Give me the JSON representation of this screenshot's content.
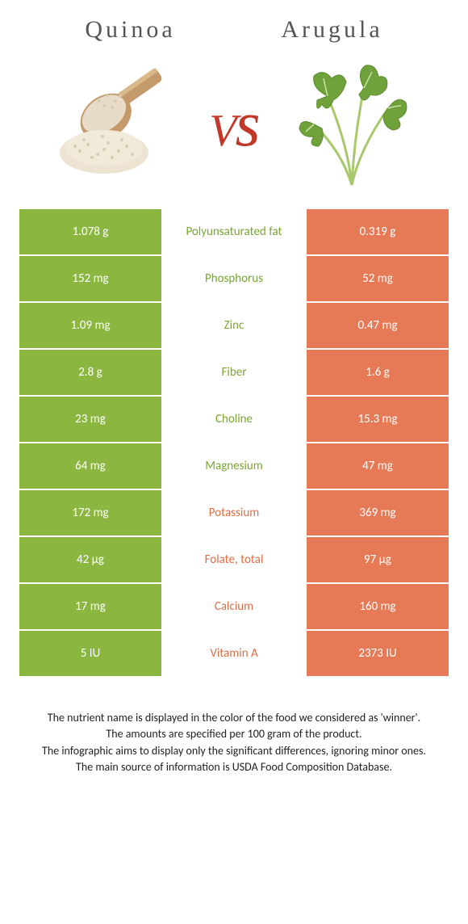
{
  "header": {
    "left": "Quinoa",
    "right": "Arugula"
  },
  "vs_text": "vs",
  "colors": {
    "quinoa": "#8bb741",
    "arugula": "#e77a56",
    "quinoa_text": "#7ba534",
    "arugula_text": "#e06d47"
  },
  "rows": [
    {
      "label": "Polyunsaturated fat",
      "left": "1.078 g",
      "right": "0.319 g",
      "winner": "quinoa"
    },
    {
      "label": "Phosphorus",
      "left": "152 mg",
      "right": "52 mg",
      "winner": "quinoa"
    },
    {
      "label": "Zinc",
      "left": "1.09 mg",
      "right": "0.47 mg",
      "winner": "quinoa"
    },
    {
      "label": "Fiber",
      "left": "2.8 g",
      "right": "1.6 g",
      "winner": "quinoa"
    },
    {
      "label": "Choline",
      "left": "23 mg",
      "right": "15.3 mg",
      "winner": "quinoa"
    },
    {
      "label": "Magnesium",
      "left": "64 mg",
      "right": "47 mg",
      "winner": "quinoa"
    },
    {
      "label": "Potassium",
      "left": "172 mg",
      "right": "369 mg",
      "winner": "arugula"
    },
    {
      "label": "Folate, total",
      "left": "42 µg",
      "right": "97 µg",
      "winner": "arugula"
    },
    {
      "label": "Calcium",
      "left": "17 mg",
      "right": "160 mg",
      "winner": "arugula"
    },
    {
      "label": "Vitamin A",
      "left": "5 IU",
      "right": "2373 IU",
      "winner": "arugula"
    }
  ],
  "footnotes": [
    "The nutrient name is displayed in the color of the food we considered as 'winner'.",
    "The amounts are specified per 100 gram of the product.",
    "The infographic aims to display only the significant differences, ignoring minor ones.",
    "The main source of information is USDA Food Composition Database."
  ]
}
